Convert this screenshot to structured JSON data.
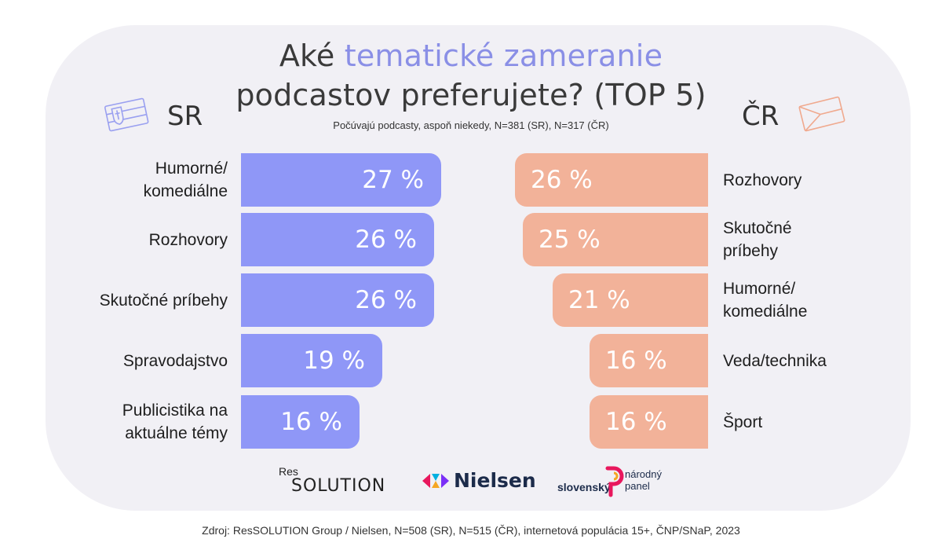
{
  "title": {
    "prefix": "Aké ",
    "accent": "tematické zameranie",
    "line2": "podcastov preferujete? (TOP 5)"
  },
  "subtitle": "Počúvajú podcasty, aspoň niekedy, N=381 (SR), N=317 (ČR)",
  "countries": {
    "sr": "SR",
    "cr": "ČR"
  },
  "colors": {
    "sr": "#8f97f7",
    "cr": "#f2b299",
    "accent": "#8a8fe6",
    "card": "#f1f0f5"
  },
  "chart_data": [
    {
      "type": "bar",
      "country": "SR",
      "categories": [
        "Humorné/\nkomediálne",
        "Rozhovory",
        "Skutočné príbehy",
        "Spravodajstvo",
        "Publicistika na\naktuálne témy"
      ],
      "values": [
        27,
        26,
        26,
        19,
        16
      ],
      "value_labels": [
        "27 %",
        "26 %",
        "26 %",
        "19 %",
        "16 %"
      ]
    },
    {
      "type": "bar",
      "country": "ČR",
      "categories": [
        "Rozhovory",
        "Skutočné\npríbehy",
        "Humorné/\nkomediálne",
        "Veda/technika",
        "Šport"
      ],
      "values": [
        26,
        25,
        21,
        16,
        16
      ],
      "value_labels": [
        "26 %",
        "25 %",
        "21 %",
        "16 %",
        "16 %"
      ]
    }
  ],
  "logos": {
    "res_top": "Res",
    "res_main": "SOLUTION",
    "nielsen": "Nielsen",
    "snp_left": "slovenský",
    "snp_right": "národný\npanel"
  },
  "source": "Zdroj: ResSOLUTION Group / Nielsen, N=508 (SR), N=515 (ČR), internetová populácia 15+, ČNP/SNaP, 2023"
}
